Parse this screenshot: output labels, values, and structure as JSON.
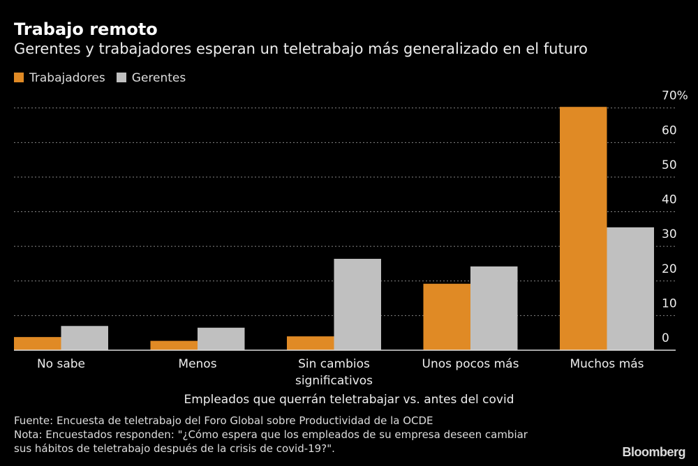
{
  "chart_data": {
    "type": "bar",
    "title": "Trabajo remoto",
    "subtitle": "Gerentes y trabajadores esperan un teletrabajo más generalizado en el futuro",
    "xlabel": "Empleados que querrán teletrabajar vs. antes del covid",
    "ylabel": "",
    "categories": [
      [
        "No sabe"
      ],
      [
        "Menos"
      ],
      [
        "Sin cambios",
        "significativos"
      ],
      [
        "Unos pocos más"
      ],
      [
        "Muchos más"
      ]
    ],
    "series": [
      {
        "name": "Trabajadores",
        "color": "#e08a25",
        "values": [
          3.8,
          2.7,
          4.0,
          19.2,
          70.3
        ]
      },
      {
        "name": "Gerentes",
        "color": "#c0c0c0",
        "values": [
          7.0,
          6.5,
          26.4,
          24.2,
          35.5
        ]
      }
    ],
    "ylim": [
      0,
      70
    ],
    "yticks": [
      "0",
      "10",
      "20",
      "30",
      "40",
      "50",
      "60",
      "70%"
    ],
    "yaxis_position": "right",
    "grid": true,
    "legend_position": "top-left"
  },
  "footer": {
    "source": "Fuente: Encuesta de teletrabajo del Foro Global sobre Productividad de la OCDE",
    "note_line1": "Nota: Encuestados responden: \"¿Cómo espera que los empleados de su empresa deseen cambiar",
    "note_line2": "sus hábitos de teletrabajo después de la crisis de covid-19?\"."
  },
  "logo": "Bloomberg"
}
